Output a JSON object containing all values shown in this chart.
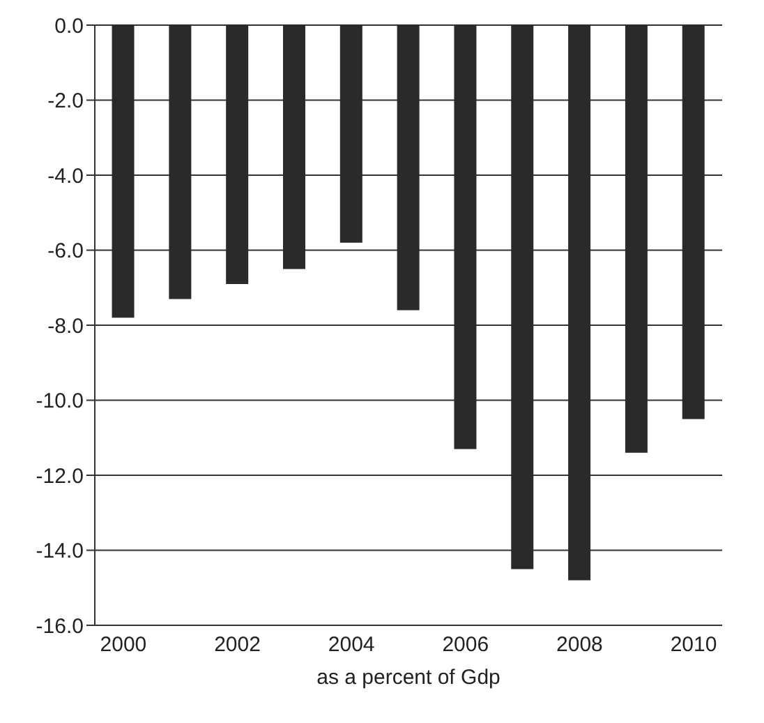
{
  "chart_data": {
    "type": "bar",
    "xlabel": "as a percent of Gdp",
    "categories": [
      "2000",
      null,
      "2002",
      null,
      "2004",
      null,
      "2006",
      null,
      "2008",
      null,
      "2010"
    ],
    "values": [
      -7.8,
      -7.3,
      -6.9,
      -6.5,
      -5.8,
      -7.6,
      -11.3,
      -14.5,
      -14.8,
      -11.4,
      -10.5
    ],
    "color": "#2a2a2a",
    "ylim": [
      -16,
      0
    ],
    "yticks": [
      {
        "value": 0,
        "label": "0.0"
      },
      {
        "value": -2,
        "label": "-2.0"
      },
      {
        "value": -4,
        "label": "-4.0"
      },
      {
        "value": -6,
        "label": "-6.0"
      },
      {
        "value": -8,
        "label": "-8.0"
      },
      {
        "value": -10,
        "label": "-10.0"
      },
      {
        "value": -12,
        "label": "-12.0"
      },
      {
        "value": -14,
        "label": "-14.0"
      },
      {
        "value": -16,
        "label": "-16.0"
      }
    ],
    "grid": "y"
  }
}
